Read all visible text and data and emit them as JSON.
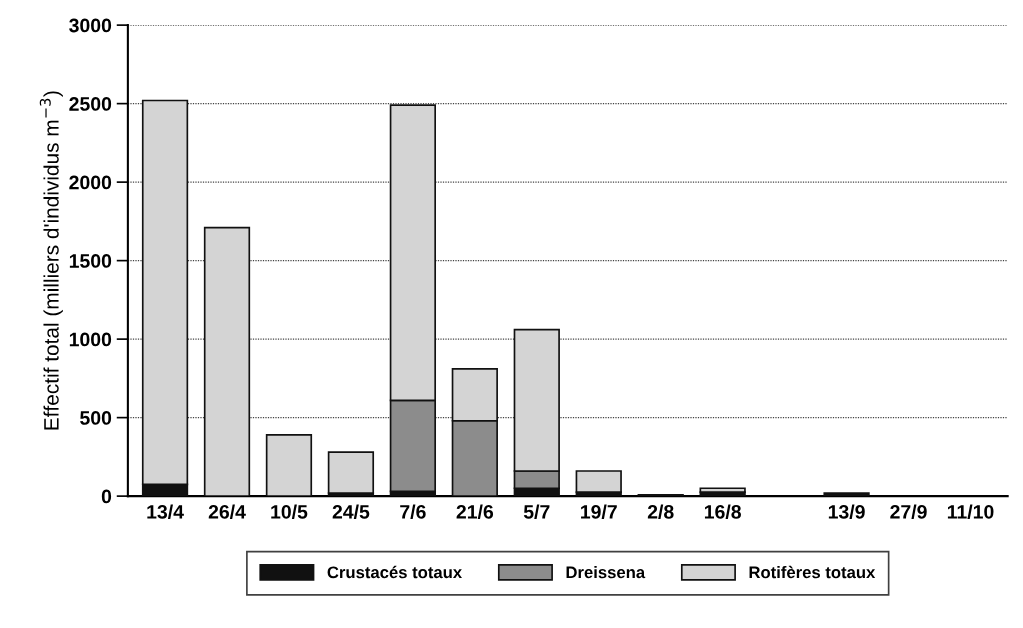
{
  "chart_data": {
    "type": "bar",
    "stacked": true,
    "ylabel": "Effectif total (milliers d'individus m$^{−3}$)",
    "categories": [
      "13/4",
      "26/4",
      "10/5",
      "24/5",
      "7/6",
      "21/6",
      "5/7",
      "19/7",
      "2/8",
      "16/8",
      null,
      "13/9",
      "27/9",
      "11/10"
    ],
    "series": [
      {
        "name": "Crustacés totaux",
        "color": "#111111",
        "values": [
          75,
          null,
          null,
          20,
          30,
          null,
          50,
          25,
          8,
          25,
          null,
          20,
          null,
          null
        ]
      },
      {
        "name": "Dreissena",
        "color": "#8c8c8c",
        "values": [
          null,
          null,
          null,
          null,
          580,
          480,
          110,
          null,
          null,
          null,
          null,
          null,
          null,
          null
        ]
      },
      {
        "name": "Rotifères totaux",
        "color": "#d4d4d4",
        "values": [
          2445,
          1710,
          390,
          260,
          1880,
          330,
          900,
          135,
          null,
          25,
          null,
          null,
          null,
          null
        ]
      }
    ],
    "ylim": [
      0,
      3000
    ],
    "yticks": [
      0,
      500,
      1000,
      1500,
      2000,
      2500,
      3000
    ],
    "grid": "y",
    "legend": "bottom"
  }
}
